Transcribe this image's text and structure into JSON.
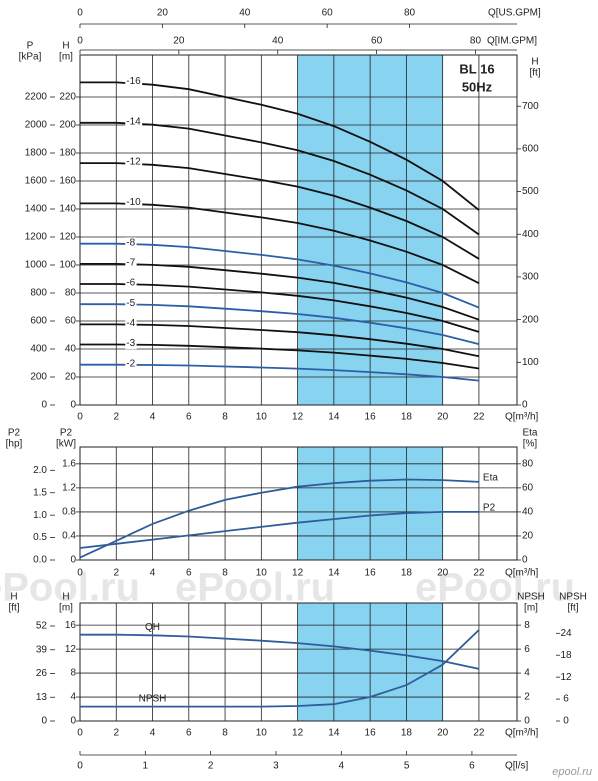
{
  "chart_data": [
    {
      "type": "line",
      "title": "BL 16",
      "subtitle": "50Hz",
      "highlight": [
        12,
        20
      ],
      "highlight_color": "#87d3f0",
      "x": [
        0,
        2,
        4,
        6,
        8,
        10,
        12,
        14,
        16,
        18,
        20,
        22
      ],
      "x_axes": [
        {
          "label": "Q[m³/h]",
          "lim": [
            0,
            24.1
          ],
          "ticks": [
            0,
            2,
            4,
            6,
            8,
            10,
            12,
            14,
            16,
            18,
            20,
            22
          ],
          "grid": true
        },
        {
          "label": "Q[US.GPM]",
          "lim": [
            0,
            106.1
          ],
          "ticks": [
            0,
            20,
            40,
            60,
            80
          ]
        },
        {
          "label": "Q[IM.GPM]",
          "lim": [
            0,
            88.4
          ],
          "ticks": [
            0,
            20,
            40,
            60,
            80
          ]
        }
      ],
      "y_axes": [
        {
          "label": [
            "P",
            "[kPa]"
          ],
          "lim": [
            0,
            2500
          ],
          "ticks": [
            0,
            200,
            400,
            600,
            800,
            1000,
            1200,
            1400,
            1600,
            1800,
            2000,
            2200
          ]
        },
        {
          "label": [
            "H",
            "[m]"
          ],
          "lim": [
            0,
            250
          ],
          "ticks": [
            0,
            20,
            40,
            60,
            80,
            100,
            120,
            140,
            160,
            180,
            200,
            220
          ],
          "grid": true
        },
        {
          "label": [
            "H",
            "[ft]"
          ],
          "lim": [
            0,
            820
          ],
          "ticks": [
            0,
            100,
            200,
            300,
            400,
            500,
            600,
            700
          ]
        }
      ],
      "series": [
        {
          "name": "-16",
          "color": "#111111",
          "axis": 1,
          "values": [
            230.4,
            230.4,
            228.8,
            225.6,
            220,
            214.4,
            208,
            199.2,
            188,
            175.2,
            160,
            139.2
          ]
        },
        {
          "name": "-14",
          "color": "#111111",
          "axis": 1,
          "values": [
            201.6,
            201.6,
            200.2,
            197.4,
            192.5,
            187.6,
            182,
            174.3,
            164.5,
            153.3,
            140,
            121.8
          ]
        },
        {
          "name": "-12",
          "color": "#111111",
          "axis": 1,
          "values": [
            172.8,
            172.8,
            171.6,
            169.2,
            165,
            160.8,
            156,
            149.4,
            141,
            131.4,
            120,
            104.4
          ]
        },
        {
          "name": "-10",
          "color": "#111111",
          "axis": 1,
          "values": [
            144,
            144,
            143,
            141,
            137.5,
            134,
            130,
            124.5,
            117.5,
            109.5,
            100,
            87
          ]
        },
        {
          "name": "-8",
          "color": "#2b5fa6",
          "axis": 1,
          "values": [
            115.2,
            115.2,
            114.4,
            112.8,
            110,
            107.2,
            104,
            99.6,
            94,
            87.6,
            80,
            69.6
          ]
        },
        {
          "name": "-7",
          "color": "#111111",
          "axis": 1,
          "values": [
            100.8,
            100.8,
            100.1,
            98.7,
            96.3,
            93.8,
            91,
            87.2,
            82.3,
            76.7,
            70,
            60.9
          ]
        },
        {
          "name": "-6",
          "color": "#111111",
          "axis": 1,
          "values": [
            86.4,
            86.4,
            85.8,
            84.6,
            82.5,
            80.4,
            78,
            74.7,
            70.5,
            65.7,
            60,
            52.2
          ]
        },
        {
          "name": "-5",
          "color": "#2b5fa6",
          "axis": 1,
          "values": [
            72,
            72,
            71.5,
            70.5,
            68.8,
            67,
            65,
            62.3,
            58.8,
            54.8,
            50,
            43.5
          ]
        },
        {
          "name": "-4",
          "color": "#111111",
          "axis": 1,
          "values": [
            57.6,
            57.6,
            57.2,
            56.4,
            55,
            53.6,
            52,
            49.8,
            47,
            43.8,
            40,
            34.8
          ]
        },
        {
          "name": "-3",
          "color": "#111111",
          "axis": 1,
          "values": [
            43.2,
            43.2,
            42.9,
            42.3,
            41.3,
            40.2,
            39,
            37.4,
            35.3,
            32.9,
            30,
            26.1
          ]
        },
        {
          "name": "-2",
          "color": "#2b5fa6",
          "axis": 1,
          "values": [
            28.8,
            28.8,
            28.6,
            28.2,
            27.5,
            26.8,
            26,
            24.9,
            23.5,
            21.9,
            20,
            17.4
          ]
        }
      ]
    },
    {
      "type": "line",
      "highlight": [
        12,
        20
      ],
      "highlight_color": "#87d3f0",
      "x": [
        0,
        2,
        4,
        6,
        8,
        10,
        12,
        14,
        16,
        18,
        20,
        22
      ],
      "x_axes": [
        {
          "label": "Q[m³/h]",
          "lim": [
            0,
            24.1
          ],
          "ticks": [
            0,
            2,
            4,
            6,
            8,
            10,
            12,
            14,
            16,
            18,
            20,
            22
          ],
          "grid": true
        }
      ],
      "y_axes": [
        {
          "label": [
            "P2",
            "[hp]"
          ],
          "lim": [
            0,
            2.52
          ],
          "ticks": [
            {
              "value": 0,
              "label": "0.0"
            },
            0.5,
            {
              "value": 1,
              "label": "1.0"
            },
            1.5,
            {
              "value": 2,
              "label": "2.0"
            }
          ]
        },
        {
          "label": [
            "P2",
            "[kW]"
          ],
          "lim": [
            0,
            1.88
          ],
          "ticks": [
            0,
            0.4,
            0.8,
            1.2,
            1.6
          ],
          "grid": true
        },
        {
          "label": [
            "Eta",
            "[%]"
          ],
          "lim": [
            0,
            94
          ],
          "ticks": [
            0,
            20,
            40,
            60,
            80
          ]
        }
      ],
      "series": [
        {
          "name": "Eta",
          "color": "#2f5d9b",
          "axis": 2,
          "values": [
            2,
            16,
            30,
            41,
            50,
            56,
            61,
            64,
            66,
            67,
            66.5,
            65
          ]
        },
        {
          "name": "P2",
          "color": "#2f5d9b",
          "axis": 1,
          "values": [
            0.2,
            0.27,
            0.34,
            0.41,
            0.48,
            0.55,
            0.62,
            0.68,
            0.74,
            0.78,
            0.8,
            0.8
          ]
        }
      ]
    },
    {
      "type": "line",
      "highlight": [
        12,
        20
      ],
      "highlight_color": "#87d3f0",
      "x": [
        0,
        2,
        4,
        6,
        8,
        10,
        12,
        14,
        16,
        18,
        20,
        22
      ],
      "x_axes": [
        {
          "label": "Q[m³/h]",
          "lim": [
            0,
            24.1
          ],
          "ticks": [
            0,
            2,
            4,
            6,
            8,
            10,
            12,
            14,
            16,
            18,
            20,
            22
          ],
          "grid": true
        },
        {
          "label": "Q[l/s]",
          "lim": [
            0,
            6.69
          ],
          "ticks": [
            0,
            1,
            2,
            3,
            4,
            5,
            6
          ]
        }
      ],
      "y_axes": [
        {
          "label": [
            "H",
            "[ft]"
          ],
          "lim": [
            0,
            64.6
          ],
          "ticks": [
            0,
            13,
            26,
            39,
            52
          ]
        },
        {
          "label": [
            "H",
            "[m]"
          ],
          "lim": [
            0,
            19.7
          ],
          "ticks": [
            0,
            4,
            8,
            12,
            16
          ],
          "grid": true
        },
        {
          "label": [
            "NPSH",
            "[m]"
          ],
          "lim": [
            0,
            9.85
          ],
          "ticks": [
            0,
            2,
            4,
            6,
            8
          ]
        },
        {
          "label": [
            "NPSH",
            "[ft]"
          ],
          "lim": [
            0,
            32.3
          ],
          "ticks": [
            0,
            6,
            12,
            18,
            24
          ]
        }
      ],
      "series": [
        {
          "name": "QH",
          "color": "#2f5d9b",
          "axis": 1,
          "values": [
            14.4,
            14.4,
            14.3,
            14.1,
            13.75,
            13.4,
            13,
            12.45,
            11.75,
            10.95,
            10,
            8.7
          ]
        },
        {
          "name": "NPSH",
          "color": "#2f5d9b",
          "axis": 2,
          "values": [
            1.2,
            1.2,
            1.2,
            1.2,
            1.2,
            1.2,
            1.25,
            1.4,
            2,
            3,
            4.7,
            7.6
          ]
        }
      ]
    }
  ],
  "watermark": "ePool.ru",
  "logo": "epool.ru"
}
